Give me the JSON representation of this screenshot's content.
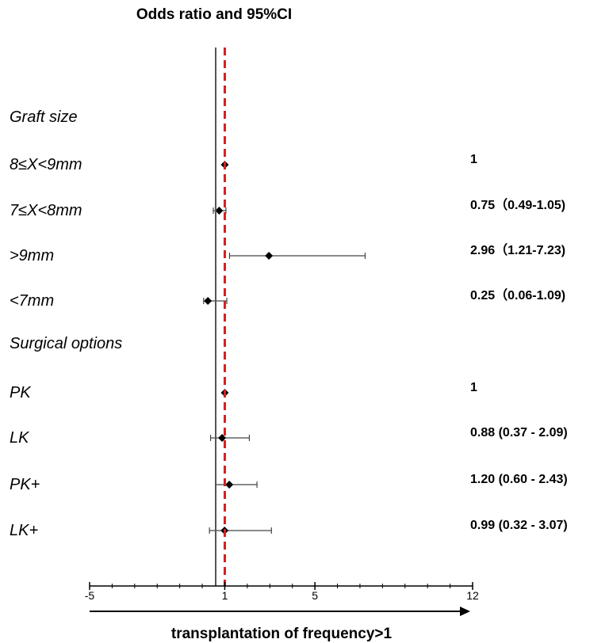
{
  "chart_data": {
    "type": "forest",
    "title": "Odds ratio and 95%CI",
    "xlabel": "transplantation of frequency>1",
    "xlim": [
      -5,
      12
    ],
    "x_ticks": [
      "-5",
      "1",
      "5",
      "12"
    ],
    "reference_line": 1,
    "colors": {
      "reference_line": "#d42020",
      "marker": "#000000",
      "axis": "#000000"
    },
    "rows": [
      {
        "label": "Graft size",
        "is_header": true
      },
      {
        "label": "8≤X<9mm",
        "or": 1,
        "lo": null,
        "hi": null,
        "text": "1"
      },
      {
        "label": "7≤X<8mm",
        "or": 0.75,
        "lo": 0.49,
        "hi": 1.05,
        "text": "0.75（0.49-1.05)"
      },
      {
        "label": ">9mm",
        "or": 2.96,
        "lo": 1.21,
        "hi": 7.23,
        "text": "2.96（1.21-7.23)"
      },
      {
        "label": "<7mm",
        "or": 0.25,
        "lo": 0.06,
        "hi": 1.09,
        "text": "0.25（0.06-1.09)"
      },
      {
        "label": "Surgical options",
        "is_header": true
      },
      {
        "label": "PK",
        "or": 1,
        "lo": null,
        "hi": null,
        "text": "1"
      },
      {
        "label": "LK",
        "or": 0.88,
        "lo": 0.37,
        "hi": 2.09,
        "text": "0.88 (0.37 - 2.09)"
      },
      {
        "label": "PK+",
        "or": 1.2,
        "lo": 0.6,
        "hi": 2.43,
        "text": "1.20 (0.60 - 2.43)"
      },
      {
        "label": "LK+",
        "or": 0.99,
        "lo": 0.32,
        "hi": 3.07,
        "text": "0.99 (0.32 - 3.07)"
      }
    ]
  }
}
